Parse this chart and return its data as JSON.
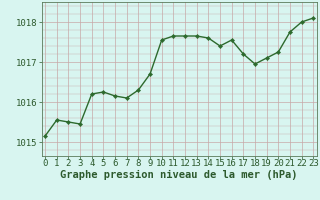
{
  "x": [
    0,
    1,
    2,
    3,
    4,
    5,
    6,
    7,
    8,
    9,
    10,
    11,
    12,
    13,
    14,
    15,
    16,
    17,
    18,
    19,
    20,
    21,
    22,
    23
  ],
  "y": [
    1015.15,
    1015.55,
    1015.5,
    1015.45,
    1016.2,
    1016.25,
    1016.15,
    1016.1,
    1016.3,
    1016.7,
    1017.55,
    1017.65,
    1017.65,
    1017.65,
    1017.6,
    1017.4,
    1017.55,
    1017.2,
    1016.95,
    1017.1,
    1017.25,
    1017.75,
    1018.0,
    1018.1
  ],
  "line_color": "#2d6a2d",
  "marker": "D",
  "marker_size": 2.2,
  "line_width": 1.0,
  "bg_color": "#d8f5f0",
  "grid_color": "#c8a8a8",
  "xlabel": "Graphe pression niveau de la mer (hPa)",
  "xlabel_fontsize": 7.5,
  "xlabel_color": "#2d5a2d",
  "ytick_labels": [
    "1015",
    "1016",
    "1017",
    "1018"
  ],
  "ytick_values": [
    1015,
    1016,
    1017,
    1018
  ],
  "ylim": [
    1014.65,
    1018.5
  ],
  "xlim": [
    -0.3,
    23.3
  ],
  "tick_color": "#2d5a2d",
  "tick_fontsize": 6.5,
  "spine_color": "#5a7a5a"
}
